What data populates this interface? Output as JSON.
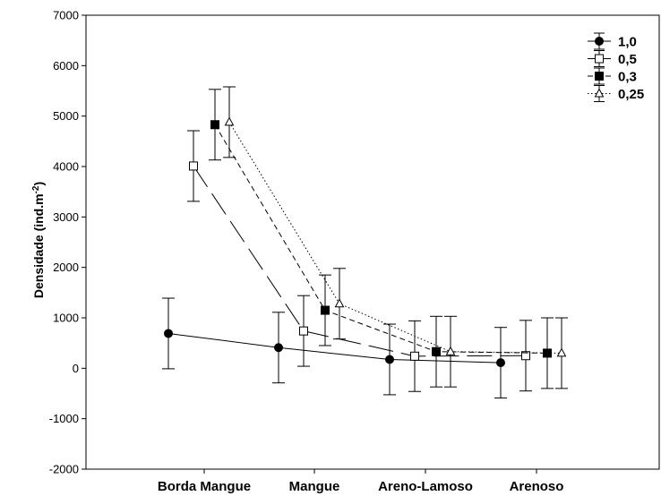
{
  "chart_data": {
    "type": "line",
    "categories": [
      "Borda Mangue",
      "Mangue",
      "Areno-Lamoso",
      "Arenoso"
    ],
    "ylabel": "Densidade (ind.m",
    "ylabel_sup": "-2",
    "ylabel_close": ")",
    "ylim": [
      -2000,
      7000
    ],
    "yticks": [
      -2000,
      -1000,
      0,
      1000,
      2000,
      3000,
      4000,
      5000,
      6000,
      7000
    ],
    "ytick_labels": [
      "-2000",
      "-1000",
      "0",
      "1000",
      "2000",
      "3000",
      "4000",
      "5000",
      "6000",
      "7000"
    ],
    "grid": false,
    "legend_position": "top-right",
    "series": [
      {
        "name": "1,0",
        "marker": "filled-circle",
        "line": "solid",
        "values": [
          690,
          410,
          175,
          110
        ],
        "err": [
          700,
          700,
          700,
          700
        ]
      },
      {
        "name": "0,5",
        "marker": "open-square",
        "line": "long-dash",
        "values": [
          4010,
          740,
          240,
          250
        ],
        "err": [
          700,
          700,
          700,
          700
        ]
      },
      {
        "name": "0,3",
        "marker": "filled-square",
        "line": "dash",
        "values": [
          4830,
          1150,
          330,
          300
        ],
        "err": [
          700,
          700,
          700,
          700
        ]
      },
      {
        "name": "0,25",
        "marker": "open-triangle",
        "line": "dot",
        "values": [
          4880,
          1280,
          330,
          300
        ],
        "err": [
          700,
          700,
          700,
          700
        ]
      }
    ]
  }
}
